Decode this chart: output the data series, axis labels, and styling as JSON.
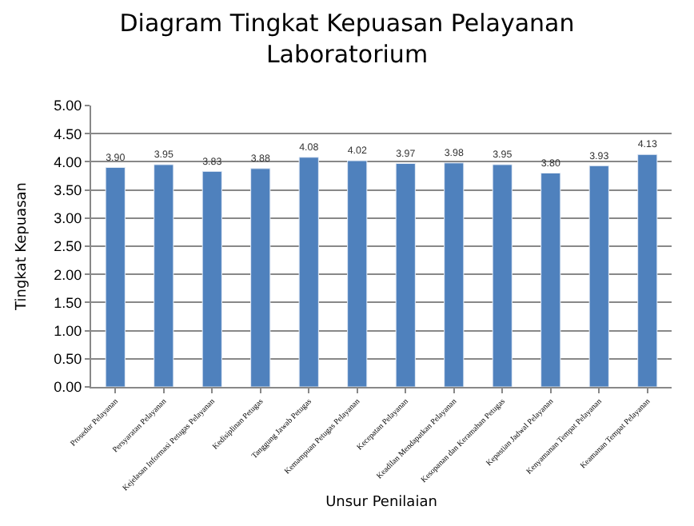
{
  "chart_data": {
    "type": "bar",
    "title": "Diagram Tingkat Kepuasan Pelayanan Laboratorium",
    "xlabel": "Unsur Penilaian",
    "ylabel": "Tingkat Kepuasan",
    "categories": [
      "Prosedur Pelayanan",
      "Persyaratan Pelayanan",
      "Kejelasan Informasi Petugas Pelayanan",
      "Kedisiplinan Petugas",
      "Tanggung Jawab Petugas",
      "Kemampuan Petugas Pelayanan",
      "Kecepatan Pelayanan",
      "Keadilan Mendapatkan Pelayanan",
      "Kesopanan dan Keramahan Petugas",
      "Kepastian Jadwal Pelayanan",
      "Kenyamanan Tempat Pelayanan",
      "Keamanan Tempat Pelayanan"
    ],
    "values": [
      3.9,
      3.95,
      3.83,
      3.88,
      4.08,
      4.02,
      3.97,
      3.98,
      3.95,
      3.8,
      3.93,
      4.13
    ],
    "value_labels": [
      "3.90",
      "3.95",
      "3.83",
      "3.88",
      "4.08",
      "4.02",
      "3.97",
      "3.98",
      "3.95",
      "3.80",
      "3.93",
      "4.13"
    ],
    "color": "#4f81bd",
    "ylim": [
      0,
      5
    ],
    "yticks": [
      {
        "value": 0,
        "label": "0.00"
      },
      {
        "value": 0.5,
        "label": "0.50"
      },
      {
        "value": 1,
        "label": "1.00"
      },
      {
        "value": 1.5,
        "label": "1.50"
      },
      {
        "value": 2,
        "label": "2.00"
      },
      {
        "value": 2.5,
        "label": "2.50"
      },
      {
        "value": 3,
        "label": "3.00"
      },
      {
        "value": 3.5,
        "label": "3.50"
      },
      {
        "value": 4,
        "label": "4.00"
      },
      {
        "value": 4.5,
        "label": "4.50"
      },
      {
        "value": 5,
        "label": "5.00"
      }
    ],
    "grid": "y"
  }
}
